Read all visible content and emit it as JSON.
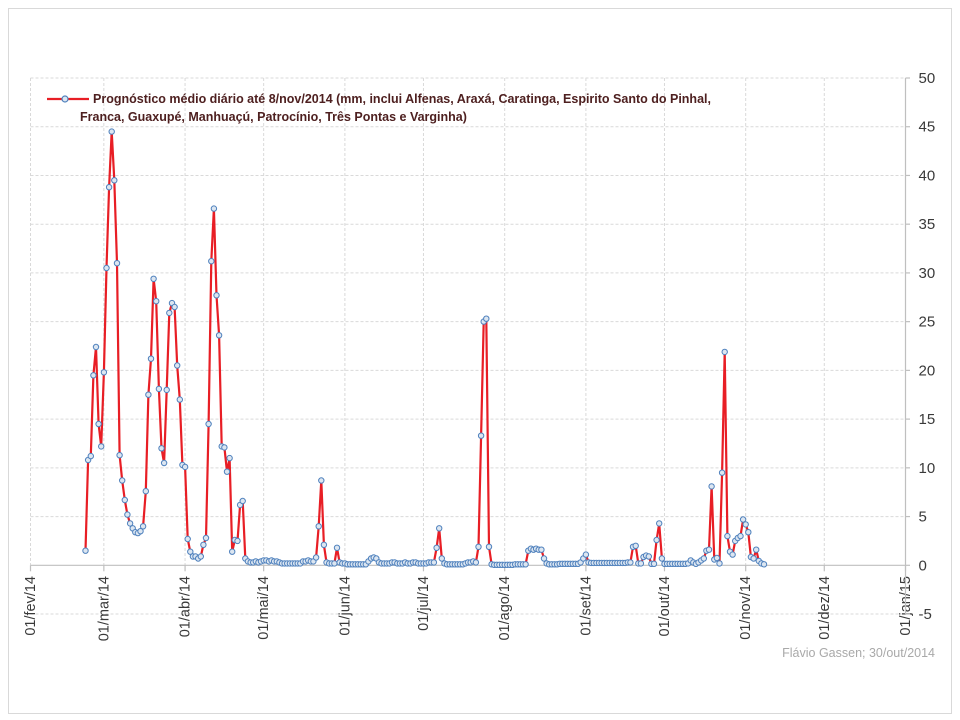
{
  "legend": {
    "line1": "Prognóstico médio diário até 8/nov/2014 (mm, inclui Alfenas, Araxá, Caratinga, Espirito Santo do Pinhal,",
    "line2": "Franca, Guaxupé, Manhuaçú, Patrocínio, Três Pontas e Varginha)"
  },
  "footer": {
    "credit": "Flávio Gassen; 30/out/2014"
  },
  "colors": {
    "line": "#e81e25",
    "marker_stroke": "#4f81bd",
    "marker_fill": "#dce6f1",
    "grid": "#d9d9d9",
    "axis": "#bfbfbf",
    "axis_text": "#3a3a3a",
    "legend_text": "#4e2020",
    "footer_text": "#a9a9a9"
  },
  "chart_data": {
    "type": "line",
    "title": "",
    "xlabel": "",
    "ylabel": "",
    "grid": true,
    "legend_position": "top-left",
    "x_axis": {
      "tick_labels": [
        "01/fev/14",
        "01/mar/14",
        "01/abr/14",
        "01/mai/14",
        "01/jun/14",
        "01/jul/14",
        "01/ago/14",
        "01/set/14",
        "01/out/14",
        "01/nov/14",
        "01/dez/14",
        "01/jan/15"
      ],
      "label_rotation_deg": 90,
      "month_day_offsets": [
        0,
        28,
        59,
        89,
        120,
        150,
        181,
        212,
        242,
        273,
        303,
        334
      ]
    },
    "y_axis": {
      "min": -5,
      "max": 50,
      "step": 5,
      "position": "right",
      "tick_labels": [
        "-5",
        "0",
        "5",
        "10",
        "15",
        "20",
        "25",
        "30",
        "35",
        "40",
        "45",
        "50"
      ]
    },
    "series": [
      {
        "name": "Prognóstico médio diário até 8/nov/2014 (mm, inclui Alfenas, Araxá, Caratinga, Espirito Santo do Pinhal, Franca, Guaxupé, Manhuaçú, Patrocínio, Três Pontas e Varginha)",
        "unit": "mm",
        "frequency": "daily",
        "start_date": "22/fev/14",
        "end_date": "08/nov/14",
        "start_day_index": 21,
        "values": [
          1.5,
          10.8,
          11.2,
          19.5,
          22.4,
          14.5,
          12.2,
          19.8,
          30.5,
          38.8,
          44.5,
          39.5,
          31.0,
          11.3,
          8.7,
          6.7,
          5.2,
          4.3,
          3.8,
          3.4,
          3.3,
          3.5,
          4.0,
          7.6,
          17.5,
          21.2,
          29.4,
          27.1,
          18.1,
          12.0,
          10.5,
          18.0,
          25.9,
          26.9,
          26.5,
          20.5,
          17.0,
          10.3,
          10.1,
          2.7,
          1.4,
          0.9,
          0.9,
          0.7,
          0.9,
          2.1,
          2.8,
          14.5,
          31.2,
          36.6,
          27.7,
          23.6,
          12.2,
          12.1,
          9.6,
          11.0,
          1.4,
          2.6,
          2.5,
          6.2,
          6.6,
          0.7,
          0.4,
          0.3,
          0.3,
          0.4,
          0.3,
          0.4,
          0.5,
          0.5,
          0.4,
          0.5,
          0.4,
          0.4,
          0.3,
          0.2,
          0.2,
          0.2,
          0.2,
          0.2,
          0.2,
          0.2,
          0.2,
          0.4,
          0.4,
          0.5,
          0.4,
          0.4,
          0.8,
          4.0,
          8.7,
          2.1,
          0.3,
          0.2,
          0.2,
          0.2,
          1.8,
          0.3,
          0.2,
          0.2,
          0.1,
          0.1,
          0.1,
          0.1,
          0.1,
          0.1,
          0.1,
          0.1,
          0.4,
          0.7,
          0.8,
          0.7,
          0.3,
          0.2,
          0.2,
          0.2,
          0.2,
          0.3,
          0.3,
          0.2,
          0.2,
          0.2,
          0.3,
          0.2,
          0.2,
          0.3,
          0.3,
          0.2,
          0.2,
          0.2,
          0.2,
          0.3,
          0.3,
          0.3,
          1.8,
          3.8,
          0.7,
          0.2,
          0.1,
          0.1,
          0.1,
          0.1,
          0.1,
          0.1,
          0.1,
          0.2,
          0.3,
          0.3,
          0.4,
          0.3,
          1.9,
          13.3,
          25.0,
          25.3,
          1.9,
          0.1,
          0.05,
          0.05,
          0.05,
          0.05,
          0.05,
          0.05,
          0.05,
          0.05,
          0.1,
          0.1,
          0.1,
          0.1,
          0.1,
          1.5,
          1.7,
          1.6,
          1.7,
          1.6,
          1.6,
          0.7,
          0.2,
          0.1,
          0.1,
          0.1,
          0.1,
          0.15,
          0.15,
          0.15,
          0.15,
          0.15,
          0.15,
          0.15,
          0.15,
          0.3,
          0.7,
          1.1,
          0.3,
          0.25,
          0.25,
          0.25,
          0.25,
          0.25,
          0.25,
          0.25,
          0.25,
          0.25,
          0.25,
          0.25,
          0.25,
          0.25,
          0.25,
          0.3,
          0.3,
          1.9,
          2.0,
          0.2,
          0.2,
          0.85,
          1.0,
          0.9,
          0.15,
          0.15,
          2.6,
          4.3,
          0.7,
          0.15,
          0.15,
          0.15,
          0.15,
          0.15,
          0.15,
          0.15,
          0.15,
          0.15,
          0.2,
          0.5,
          0.3,
          0.15,
          0.3,
          0.5,
          0.7,
          1.5,
          1.6,
          8.1,
          0.6,
          0.75,
          0.2,
          9.5,
          21.9,
          3.0,
          1.4,
          1.1,
          2.5,
          2.8,
          3.0,
          4.7,
          4.2,
          3.4,
          0.85,
          0.7,
          1.6,
          0.45,
          0.2,
          0.1
        ]
      }
    ]
  }
}
